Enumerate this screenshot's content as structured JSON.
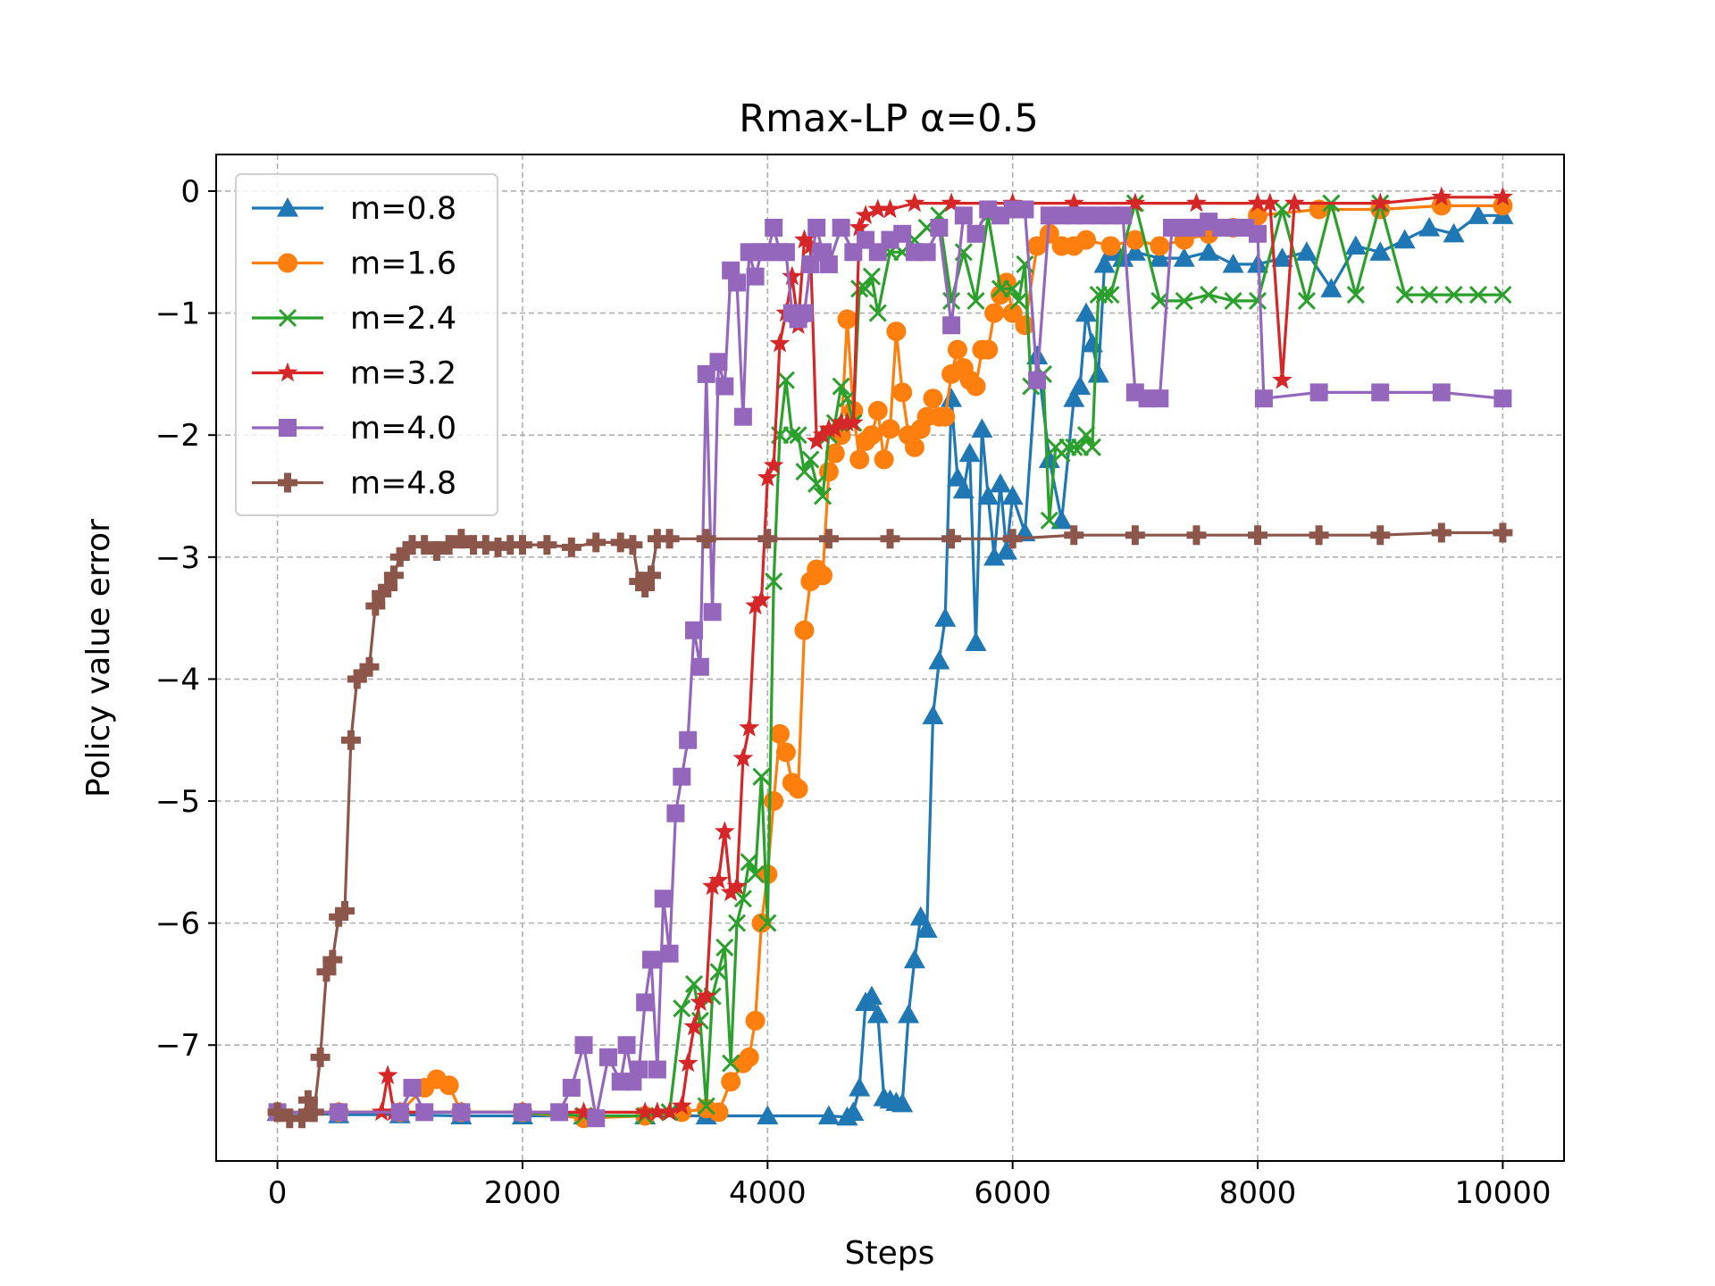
{
  "chart_data": {
    "type": "line",
    "title": "Rmax-LP α=0.5",
    "xlabel": "Steps",
    "ylabel": "Policy value error",
    "xlim": [
      -500,
      10500
    ],
    "ylim": [
      -7.95,
      0.3
    ],
    "xticks": [
      0,
      2000,
      4000,
      6000,
      8000,
      10000
    ],
    "yticks": [
      0,
      -1,
      -2,
      -3,
      -4,
      -5,
      -6,
      -7
    ],
    "xtick_labels": [
      "0",
      "2000",
      "4000",
      "6000",
      "8000",
      "10000"
    ],
    "ytick_labels": [
      "0",
      "−1",
      "−2",
      "−3",
      "−4",
      "−5",
      "−6",
      "−7"
    ],
    "grid": true,
    "legend_position": "top-left",
    "series": [
      {
        "name": "m=0.8",
        "color": "#1f77b4",
        "marker": "triangle",
        "x": [
          0,
          500,
          1000,
          1500,
          2000,
          2500,
          3000,
          3500,
          4000,
          4500,
          4650,
          4700,
          4750,
          4800,
          4850,
          4900,
          4950,
          5000,
          5050,
          5100,
          5150,
          5200,
          5250,
          5300,
          5350,
          5400,
          5450,
          5500,
          5550,
          5600,
          5650,
          5700,
          5750,
          5800,
          5850,
          5900,
          5950,
          6000,
          6100,
          6200,
          6300,
          6400,
          6500,
          6550,
          6600,
          6650,
          6700,
          6750,
          6800,
          6850,
          6900,
          7000,
          7200,
          7400,
          7600,
          7800,
          8000,
          8200,
          8400,
          8600,
          8800,
          9000,
          9200,
          9400,
          9600,
          9800,
          10000
        ],
        "y": [
          -7.55,
          -7.57,
          -7.57,
          -7.58,
          -7.58,
          -7.58,
          -7.58,
          -7.58,
          -7.58,
          -7.58,
          -7.59,
          -7.55,
          -7.35,
          -6.65,
          -6.6,
          -6.75,
          -7.43,
          -7.45,
          -7.47,
          -7.48,
          -6.75,
          -6.3,
          -5.95,
          -6.05,
          -4.3,
          -3.85,
          -3.5,
          -1.7,
          -2.35,
          -2.45,
          -2.15,
          -3.7,
          -1.95,
          -2.5,
          -3.0,
          -2.4,
          -2.95,
          -2.5,
          -2.8,
          -1.35,
          -2.2,
          -2.7,
          -1.7,
          -1.6,
          -1.0,
          -1.25,
          -1.5,
          -0.6,
          -0.5,
          -0.5,
          -0.55,
          -0.5,
          -0.55,
          -0.55,
          -0.5,
          -0.6,
          -0.6,
          -0.55,
          -0.5,
          -0.8,
          -0.45,
          -0.5,
          -0.4,
          -0.3,
          -0.35,
          -0.2,
          -0.2
        ]
      },
      {
        "name": "m=1.6",
        "color": "#ff7f0e",
        "marker": "circle",
        "x": [
          0,
          500,
          1000,
          1200,
          1300,
          1400,
          1500,
          2000,
          2500,
          3000,
          3300,
          3500,
          3600,
          3700,
          3800,
          3850,
          3900,
          3950,
          4000,
          4050,
          4100,
          4150,
          4200,
          4250,
          4300,
          4350,
          4400,
          4450,
          4500,
          4550,
          4600,
          4650,
          4700,
          4750,
          4800,
          4850,
          4900,
          4950,
          5000,
          5050,
          5100,
          5150,
          5200,
          5250,
          5300,
          5350,
          5400,
          5450,
          5500,
          5550,
          5600,
          5650,
          5700,
          5750,
          5800,
          5850,
          5900,
          5950,
          6000,
          6100,
          6200,
          6300,
          6400,
          6500,
          6600,
          6800,
          7000,
          7200,
          7400,
          7600,
          7800,
          8000,
          8500,
          9000,
          9500,
          10000
        ],
        "y": [
          -7.55,
          -7.55,
          -7.55,
          -7.35,
          -7.28,
          -7.33,
          -7.55,
          -7.55,
          -7.6,
          -7.58,
          -7.55,
          -7.52,
          -7.55,
          -7.3,
          -7.15,
          -7.1,
          -6.8,
          -6.0,
          -5.6,
          -5.0,
          -4.45,
          -4.6,
          -4.85,
          -4.9,
          -3.6,
          -3.2,
          -3.1,
          -3.15,
          -2.3,
          -2.15,
          -2.0,
          -1.05,
          -1.8,
          -2.2,
          -2.05,
          -2.0,
          -1.8,
          -2.2,
          -1.95,
          -1.15,
          -1.65,
          -2.0,
          -2.1,
          -1.95,
          -1.85,
          -1.7,
          -1.85,
          -1.85,
          -1.5,
          -1.3,
          -1.45,
          -1.55,
          -1.6,
          -1.3,
          -1.3,
          -1.0,
          -0.85,
          -0.75,
          -1.0,
          -1.1,
          -0.45,
          -0.35,
          -0.45,
          -0.45,
          -0.4,
          -0.45,
          -0.4,
          -0.45,
          -0.4,
          -0.35,
          -0.3,
          -0.2,
          -0.15,
          -0.15,
          -0.12,
          -0.12
        ]
      },
      {
        "name": "m=2.4",
        "color": "#2ca02c",
        "marker": "x",
        "x": [
          0,
          500,
          1000,
          1500,
          2000,
          2500,
          3000,
          3200,
          3300,
          3400,
          3450,
          3500,
          3550,
          3600,
          3650,
          3700,
          3750,
          3800,
          3850,
          3900,
          3950,
          4000,
          4050,
          4100,
          4150,
          4200,
          4250,
          4300,
          4350,
          4400,
          4450,
          4500,
          4550,
          4600,
          4650,
          4700,
          4750,
          4800,
          4850,
          4900,
          5000,
          5100,
          5200,
          5300,
          5400,
          5500,
          5600,
          5700,
          5800,
          5900,
          6000,
          6050,
          6100,
          6150,
          6200,
          6250,
          6300,
          6350,
          6400,
          6450,
          6500,
          6550,
          6600,
          6650,
          6700,
          6750,
          6800,
          7000,
          7200,
          7400,
          7600,
          7800,
          8000,
          8200,
          8400,
          8600,
          8800,
          9000,
          9200,
          9400,
          9600,
          9800,
          10000
        ],
        "y": [
          -7.55,
          -7.55,
          -7.55,
          -7.55,
          -7.55,
          -7.58,
          -7.58,
          -7.55,
          -6.7,
          -6.5,
          -6.8,
          -7.5,
          -6.6,
          -6.4,
          -6.2,
          -7.15,
          -6.0,
          -5.8,
          -5.5,
          -5.6,
          -4.8,
          -6.0,
          -3.2,
          -2.0,
          -1.55,
          -2.0,
          -2.0,
          -2.3,
          -2.2,
          -2.4,
          -2.5,
          -2.0,
          -1.9,
          -1.6,
          -1.7,
          -1.9,
          -0.8,
          -0.8,
          -0.7,
          -1.0,
          -0.5,
          -0.5,
          -0.4,
          -0.3,
          -0.2,
          -0.9,
          -0.5,
          -0.9,
          -0.2,
          -0.8,
          -0.8,
          -0.9,
          -0.6,
          -1.6,
          -1.55,
          -1.5,
          -2.7,
          -2.1,
          -2.15,
          -2.1,
          -2.1,
          -2.1,
          -2.0,
          -2.1,
          -0.85,
          -0.85,
          -0.85,
          -0.1,
          -0.9,
          -0.9,
          -0.85,
          -0.9,
          -0.9,
          -0.15,
          -0.9,
          -0.1,
          -0.85,
          -0.1,
          -0.85,
          -0.85,
          -0.85,
          -0.85,
          -0.85
        ]
      },
      {
        "name": "m=3.2",
        "color": "#d62728",
        "marker": "star",
        "x": [
          0,
          500,
          850,
          900,
          950,
          1000,
          1500,
          2000,
          2500,
          3000,
          3100,
          3200,
          3300,
          3350,
          3400,
          3450,
          3500,
          3550,
          3600,
          3650,
          3700,
          3750,
          3800,
          3850,
          3900,
          3950,
          4000,
          4050,
          4100,
          4150,
          4200,
          4250,
          4300,
          4350,
          4400,
          4450,
          4500,
          4550,
          4600,
          4650,
          4700,
          4750,
          4800,
          4900,
          5000,
          5200,
          5500,
          6000,
          6500,
          7000,
          7500,
          8000,
          8100,
          8200,
          8300,
          9000,
          9500,
          10000
        ],
        "y": [
          -7.55,
          -7.55,
          -7.55,
          -7.25,
          -7.55,
          -7.55,
          -7.55,
          -7.55,
          -7.55,
          -7.55,
          -7.55,
          -7.55,
          -7.5,
          -7.15,
          -6.85,
          -6.65,
          -6.6,
          -5.7,
          -5.65,
          -5.25,
          -5.75,
          -5.7,
          -4.65,
          -4.4,
          -3.4,
          -3.35,
          -2.35,
          -2.25,
          -1.25,
          -1.0,
          -0.7,
          -1.1,
          -0.4,
          -0.45,
          -2.05,
          -2.0,
          -1.95,
          -1.95,
          -1.9,
          -1.9,
          -1.9,
          -0.3,
          -0.2,
          -0.15,
          -0.15,
          -0.1,
          -0.1,
          -0.1,
          -0.1,
          -0.1,
          -0.1,
          -0.1,
          -0.1,
          -1.55,
          -0.1,
          -0.1,
          -0.05,
          -0.05
        ]
      },
      {
        "name": "m=4.0",
        "color": "#9467bd",
        "marker": "square",
        "x": [
          0,
          500,
          1000,
          1100,
          1200,
          1500,
          2000,
          2300,
          2400,
          2500,
          2600,
          2700,
          2800,
          2850,
          2900,
          2950,
          3000,
          3050,
          3100,
          3150,
          3200,
          3250,
          3300,
          3350,
          3400,
          3450,
          3500,
          3550,
          3600,
          3650,
          3700,
          3750,
          3800,
          3850,
          3900,
          3950,
          4000,
          4050,
          4100,
          4150,
          4200,
          4250,
          4300,
          4350,
          4400,
          4450,
          4500,
          4600,
          4700,
          4800,
          4900,
          5000,
          5100,
          5200,
          5300,
          5400,
          5500,
          5600,
          5700,
          5800,
          5900,
          6000,
          6100,
          6200,
          6300,
          6400,
          6500,
          6600,
          6700,
          6800,
          6900,
          7000,
          7100,
          7200,
          7300,
          7400,
          7500,
          7600,
          7700,
          7800,
          7900,
          8000,
          8050,
          8500,
          9000,
          9500,
          10000
        ],
        "y": [
          -7.55,
          -7.55,
          -7.55,
          -7.35,
          -7.55,
          -7.55,
          -7.55,
          -7.55,
          -7.35,
          -7.0,
          -7.6,
          -7.1,
          -7.3,
          -7.0,
          -7.3,
          -7.2,
          -6.65,
          -6.3,
          -7.2,
          -5.8,
          -6.25,
          -5.1,
          -4.8,
          -4.5,
          -3.6,
          -3.9,
          -1.5,
          -3.45,
          -1.4,
          -1.6,
          -0.65,
          -0.75,
          -1.85,
          -0.5,
          -0.7,
          -0.5,
          -0.5,
          -0.3,
          -0.5,
          -0.5,
          -1.0,
          -1.05,
          -1.0,
          -0.6,
          -0.3,
          -0.5,
          -0.6,
          -0.3,
          -0.5,
          -0.4,
          -0.5,
          -0.4,
          -0.35,
          -0.5,
          -0.5,
          -0.3,
          -1.1,
          -0.2,
          -0.35,
          -0.15,
          -0.2,
          -0.15,
          -0.15,
          -1.55,
          -0.2,
          -0.2,
          -0.2,
          -0.2,
          -0.2,
          -0.2,
          -0.2,
          -1.65,
          -1.7,
          -1.7,
          -0.3,
          -0.3,
          -0.3,
          -0.25,
          -0.3,
          -0.3,
          -0.3,
          -0.35,
          -1.7,
          -1.65,
          -1.65,
          -1.65,
          -1.7
        ]
      },
      {
        "name": "m=4.8",
        "color": "#8c564b",
        "marker": "plus",
        "x": [
          0,
          100,
          200,
          250,
          300,
          350,
          400,
          450,
          500,
          550,
          600,
          650,
          700,
          750,
          800,
          850,
          900,
          950,
          1000,
          1050,
          1100,
          1200,
          1300,
          1400,
          1500,
          1600,
          1700,
          1800,
          1900,
          2000,
          2200,
          2400,
          2600,
          2800,
          2900,
          2950,
          3000,
          3050,
          3100,
          3200,
          3500,
          4000,
          4500,
          5000,
          5500,
          6000,
          6500,
          7000,
          7500,
          8000,
          8500,
          9000,
          9500,
          10000
        ],
        "y": [
          -7.55,
          -7.6,
          -7.6,
          -7.45,
          -7.55,
          -7.1,
          -6.4,
          -6.3,
          -5.95,
          -5.9,
          -4.5,
          -4.0,
          -3.95,
          -3.9,
          -3.4,
          -3.3,
          -3.25,
          -3.15,
          -3.0,
          -2.95,
          -2.9,
          -2.9,
          -2.95,
          -2.9,
          -2.85,
          -2.9,
          -2.9,
          -2.92,
          -2.9,
          -2.9,
          -2.9,
          -2.92,
          -2.88,
          -2.88,
          -2.9,
          -3.2,
          -3.25,
          -3.15,
          -2.85,
          -2.85,
          -2.85,
          -2.85,
          -2.85,
          -2.85,
          -2.85,
          -2.85,
          -2.82,
          -2.82,
          -2.82,
          -2.82,
          -2.82,
          -2.82,
          -2.8,
          -2.8
        ]
      }
    ]
  }
}
